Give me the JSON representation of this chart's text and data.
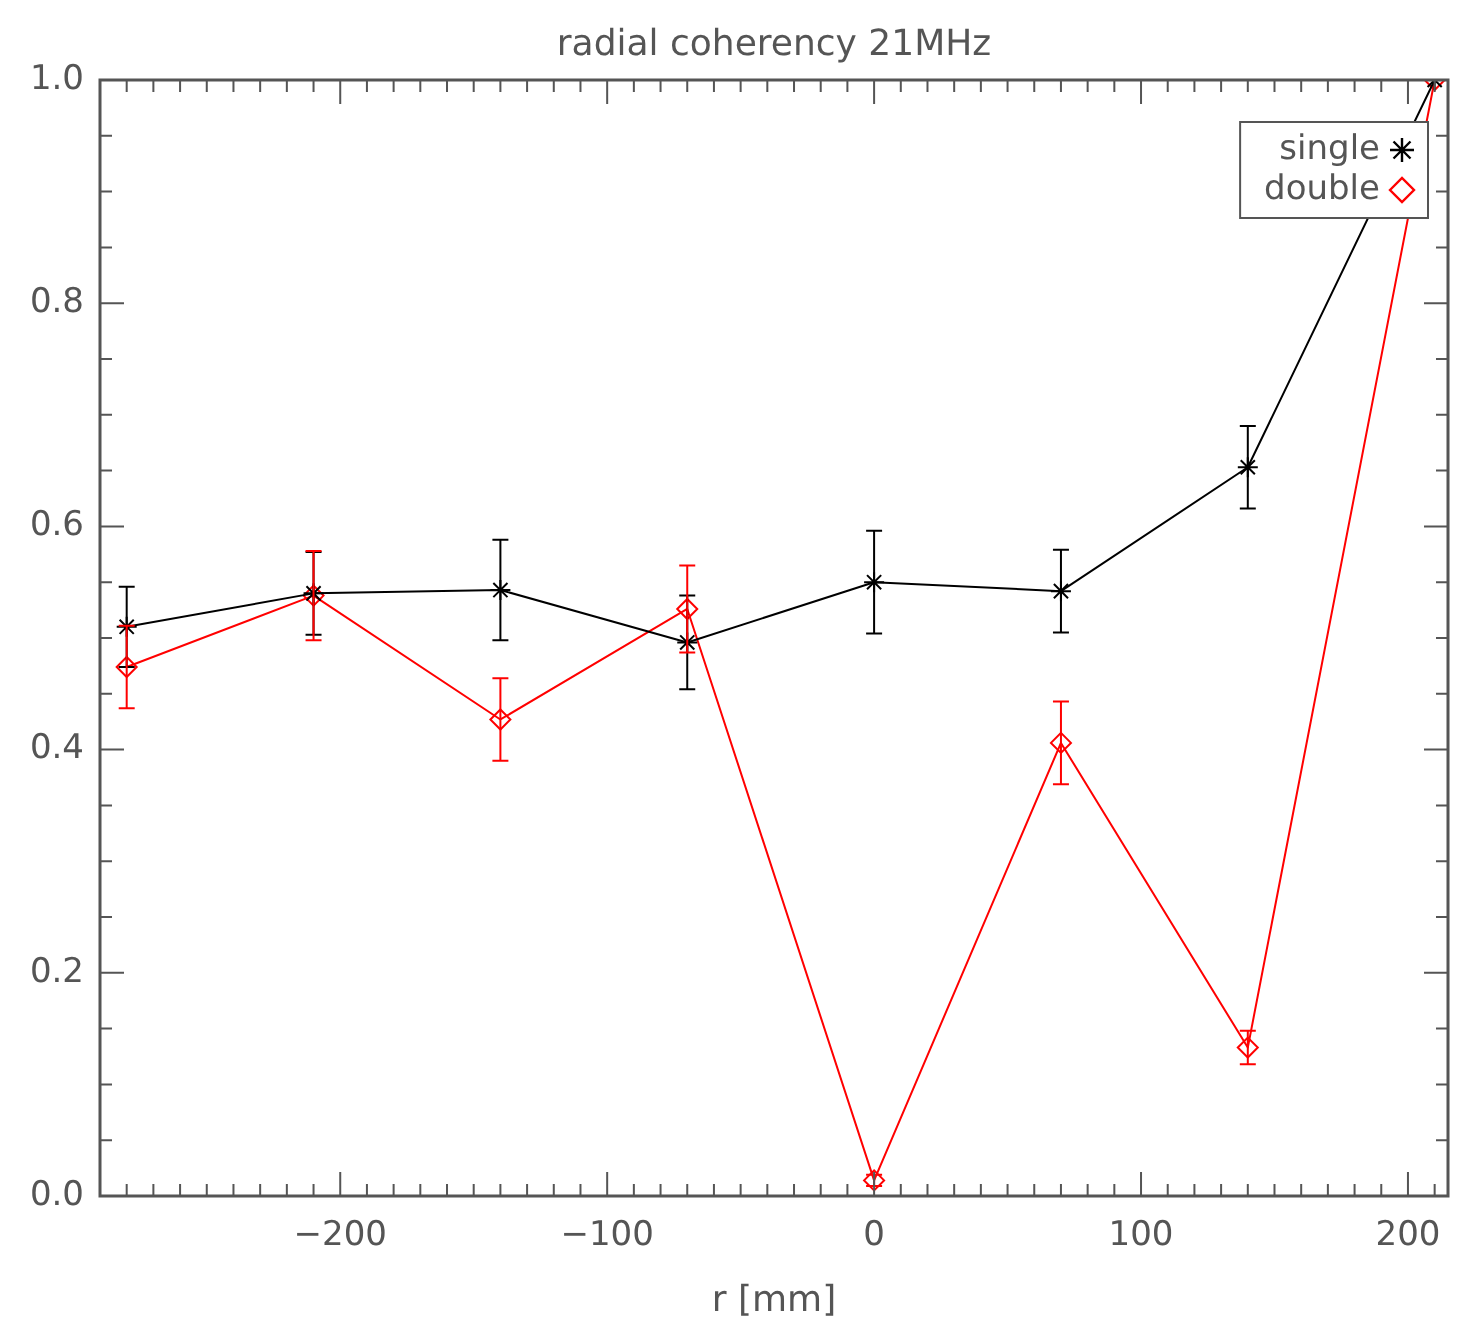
{
  "chart_data": {
    "type": "line",
    "title": "radial coherency 21MHz",
    "xlabel": "r [mm]",
    "x": [
      -280,
      -210,
      -140,
      -70,
      0,
      70,
      140,
      210
    ],
    "series": [
      {
        "name": "single",
        "color": "#000000",
        "marker": "cross",
        "values": [
          0.51,
          0.54,
          0.543,
          0.496,
          0.55,
          0.542,
          0.653,
          1.0
        ],
        "errors": [
          0.036,
          0.037,
          0.045,
          0.042,
          0.046,
          0.037,
          0.037,
          null
        ]
      },
      {
        "name": "double",
        "color": "#ff0000",
        "marker": "diamond",
        "values": [
          0.474,
          0.538,
          0.427,
          0.526,
          0.014,
          0.406,
          0.133,
          1.0
        ],
        "errors": [
          0.037,
          0.04,
          0.037,
          0.039,
          0.005,
          0.037,
          0.015,
          null
        ]
      }
    ],
    "xlim": [
      -290,
      215
    ],
    "ylim": [
      0,
      1
    ],
    "xticks": [
      {
        "value": -280,
        "label": null
      },
      {
        "value": -270,
        "label": null
      },
      {
        "value": -260,
        "label": null
      },
      {
        "value": -250,
        "label": null
      },
      {
        "value": -240,
        "label": null
      },
      {
        "value": -230,
        "label": null
      },
      {
        "value": -220,
        "label": null
      },
      {
        "value": -210,
        "label": null
      },
      {
        "value": -200,
        "label": "−200"
      },
      {
        "value": -190,
        "label": null
      },
      {
        "value": -180,
        "label": null
      },
      {
        "value": -170,
        "label": null
      },
      {
        "value": -160,
        "label": null
      },
      {
        "value": -150,
        "label": null
      },
      {
        "value": -140,
        "label": null
      },
      {
        "value": -130,
        "label": null
      },
      {
        "value": -120,
        "label": null
      },
      {
        "value": -110,
        "label": null
      },
      {
        "value": -100,
        "label": "−100"
      },
      {
        "value": -90,
        "label": null
      },
      {
        "value": -80,
        "label": null
      },
      {
        "value": -70,
        "label": null
      },
      {
        "value": -60,
        "label": null
      },
      {
        "value": -50,
        "label": null
      },
      {
        "value": -40,
        "label": null
      },
      {
        "value": -30,
        "label": null
      },
      {
        "value": -20,
        "label": null
      },
      {
        "value": -10,
        "label": null
      },
      0,
      {
        "value": 10,
        "label": null
      },
      {
        "value": 20,
        "label": null
      },
      {
        "value": 30,
        "label": null
      },
      {
        "value": 40,
        "label": null
      },
      {
        "value": 50,
        "label": null
      },
      {
        "value": 60,
        "label": null
      },
      {
        "value": 70,
        "label": null
      },
      {
        "value": 80,
        "label": null
      },
      {
        "value": 90,
        "label": null
      },
      100,
      {
        "value": 110,
        "label": null
      },
      {
        "value": 120,
        "label": null
      },
      {
        "value": 130,
        "label": null
      },
      {
        "value": 140,
        "label": null
      },
      {
        "value": 150,
        "label": null
      },
      {
        "value": 160,
        "label": null
      },
      {
        "value": 170,
        "label": null
      },
      {
        "value": 180,
        "label": null
      },
      {
        "value": 190,
        "label": null
      },
      200,
      {
        "value": 210,
        "label": null
      }
    ],
    "yticks": [
      {
        "value": 0,
        "label": "0.0"
      },
      {
        "value": 0.05,
        "label": null
      },
      {
        "value": 0.1,
        "label": null
      },
      {
        "value": 0.15,
        "label": null
      },
      0.2,
      {
        "value": 0.25,
        "label": null
      },
      {
        "value": 0.3,
        "label": null
      },
      {
        "value": 0.35,
        "label": null
      },
      0.4,
      {
        "value": 0.45,
        "label": null
      },
      {
        "value": 0.5,
        "label": null
      },
      {
        "value": 0.55,
        "label": null
      },
      0.6,
      {
        "value": 0.65,
        "label": null
      },
      {
        "value": 0.7,
        "label": null
      },
      {
        "value": 0.75,
        "label": null
      },
      0.8,
      {
        "value": 0.85,
        "label": null
      },
      {
        "value": 0.9,
        "label": null
      },
      {
        "value": 0.95,
        "label": null
      },
      {
        "value": 1,
        "label": "1.0"
      }
    ],
    "legend": "top right",
    "grid": false,
    "line_style": "solid"
  }
}
